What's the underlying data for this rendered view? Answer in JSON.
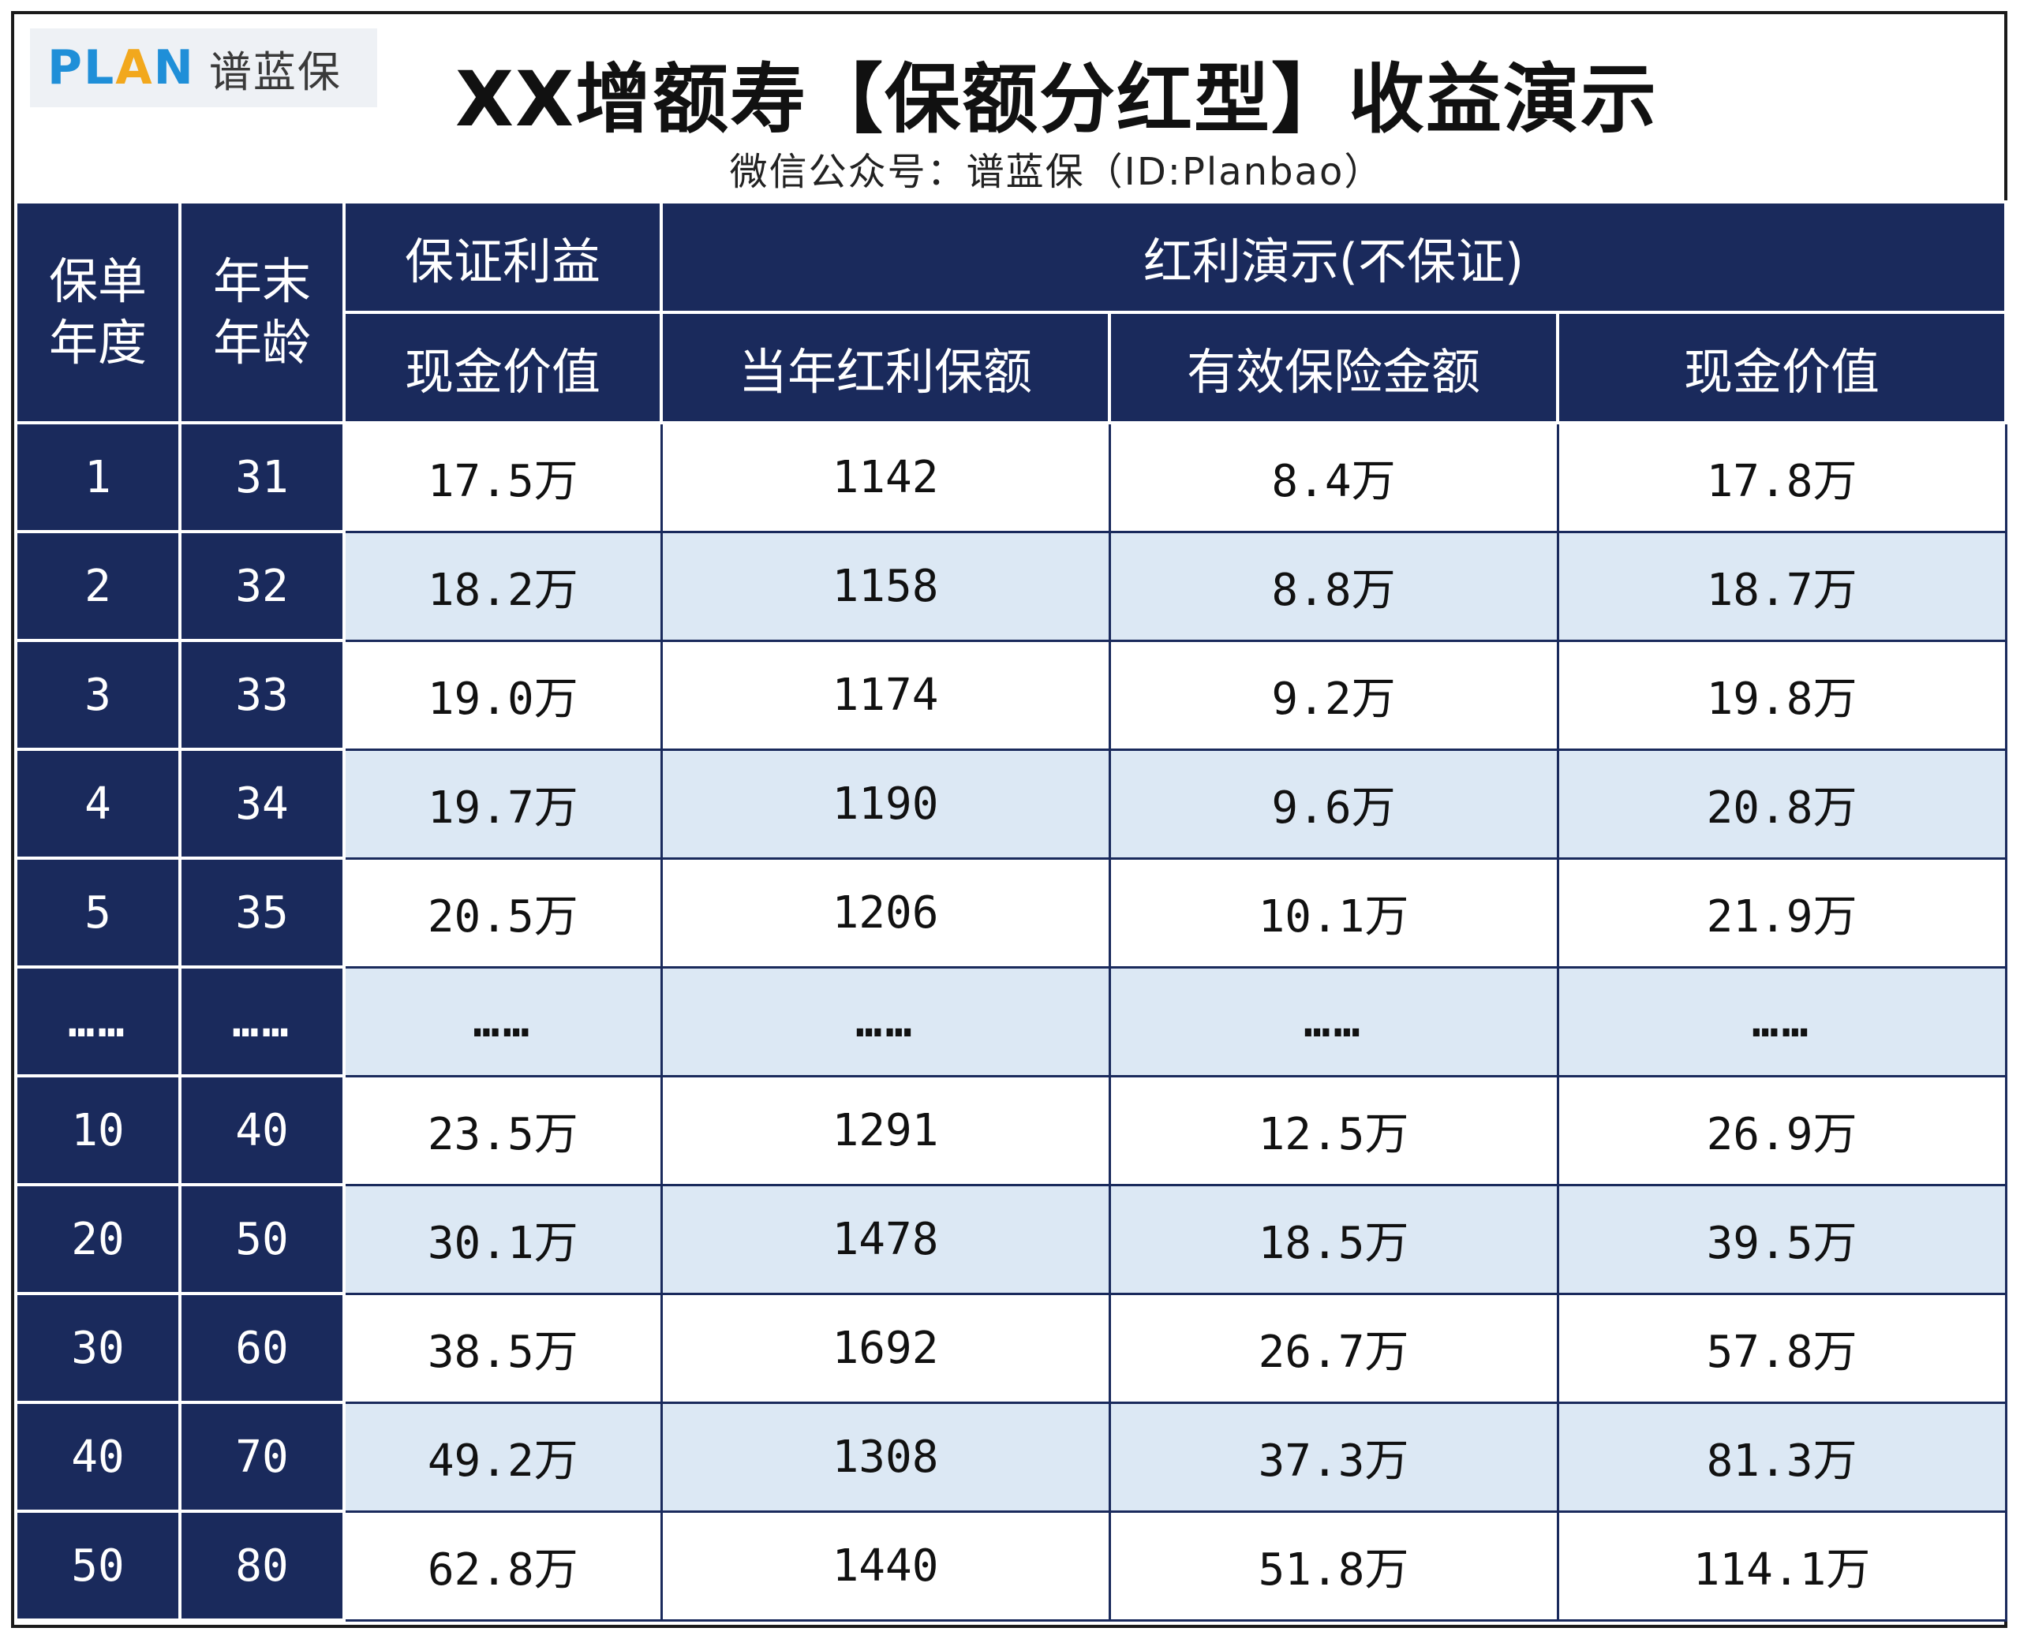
{
  "header": {
    "logo_plan": "PLAN",
    "logo_cn": "谱蓝保",
    "title": "XX增额寿【保额分红型】收益演示",
    "subtitle": "微信公众号：谱蓝保（ID:Planbao）"
  },
  "table": {
    "col_policy_year": "保单年度",
    "col_age": "年末年龄",
    "group_guaranteed": "保证利益",
    "group_dividend": "红利演示(不保证)",
    "col_gcash": "现金价值",
    "col_bonus": "当年红利保额",
    "col_sum": "有效保险金额",
    "col_dcash": "现金价值",
    "rows": [
      {
        "year": "1",
        "age": "31",
        "gcash": "17.5万",
        "bonus": "1142",
        "sum": "8.4万",
        "dcash": "17.8万"
      },
      {
        "year": "2",
        "age": "32",
        "gcash": "18.2万",
        "bonus": "1158",
        "sum": "8.8万",
        "dcash": "18.7万"
      },
      {
        "year": "3",
        "age": "33",
        "gcash": "19.0万",
        "bonus": "1174",
        "sum": "9.2万",
        "dcash": "19.8万"
      },
      {
        "year": "4",
        "age": "34",
        "gcash": "19.7万",
        "bonus": "1190",
        "sum": "9.6万",
        "dcash": "20.8万"
      },
      {
        "year": "5",
        "age": "35",
        "gcash": "20.5万",
        "bonus": "1206",
        "sum": "10.1万",
        "dcash": "21.9万"
      },
      {
        "year": "……",
        "age": "……",
        "gcash": "……",
        "bonus": "……",
        "sum": "……",
        "dcash": "……"
      },
      {
        "year": "10",
        "age": "40",
        "gcash": "23.5万",
        "bonus": "1291",
        "sum": "12.5万",
        "dcash": "26.9万"
      },
      {
        "year": "20",
        "age": "50",
        "gcash": "30.1万",
        "bonus": "1478",
        "sum": "18.5万",
        "dcash": "39.5万"
      },
      {
        "year": "30",
        "age": "60",
        "gcash": "38.5万",
        "bonus": "1692",
        "sum": "26.7万",
        "dcash": "57.8万"
      },
      {
        "year": "40",
        "age": "70",
        "gcash": "49.2万",
        "bonus": "1308",
        "sum": "37.3万",
        "dcash": "81.3万"
      },
      {
        "year": "50",
        "age": "80",
        "gcash": "62.8万",
        "bonus": "1440",
        "sum": "51.8万",
        "dcash": "114.1万"
      }
    ]
  }
}
